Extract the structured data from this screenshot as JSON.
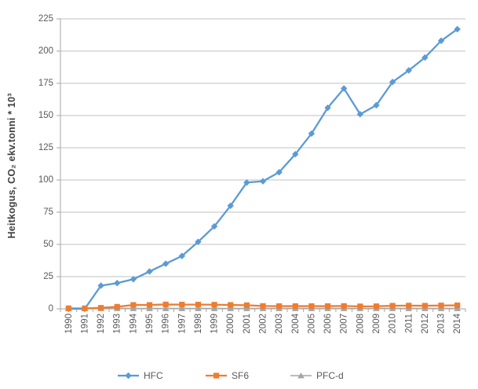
{
  "chart_data": {
    "type": "line",
    "title": "",
    "ylabel": "Heitkogus,  CO₂ ekv.tonni * 10³",
    "xlabel": "",
    "ylim": [
      0,
      225
    ],
    "ytick_step": 25,
    "grid": "horizontal",
    "legend_position": "bottom",
    "categories": [
      "1990",
      "1991",
      "1992",
      "1993",
      "1994",
      "1995",
      "1996",
      "1997",
      "1998",
      "1999",
      "2000",
      "2001",
      "2002",
      "2003",
      "2004",
      "2005",
      "2006",
      "2007",
      "2008",
      "2009",
      "2010",
      "2011",
      "2012",
      "2013",
      "2014"
    ],
    "series": [
      {
        "name": "HFC",
        "color": "#5B9BD5",
        "marker": "diamond",
        "values": [
          0,
          0,
          18,
          20,
          23,
          29,
          35,
          41,
          52,
          64,
          80,
          98,
          99,
          106,
          120,
          136,
          156,
          171,
          151,
          158,
          176,
          185,
          195,
          208,
          217
        ]
      },
      {
        "name": "SF6",
        "color": "#ED7D31",
        "marker": "square",
        "values": [
          0.4,
          0.4,
          0.8,
          1.6,
          3.0,
          3.0,
          3.4,
          3.3,
          3.3,
          3.2,
          3.0,
          2.8,
          2.2,
          2.1,
          2.1,
          2.1,
          2.1,
          2.2,
          1.9,
          2.0,
          2.4,
          2.5,
          2.4,
          2.6,
          2.7
        ]
      },
      {
        "name": "PFC-d",
        "color": "#A5A5A5",
        "marker": "triangle",
        "values": [
          0.3,
          0.3,
          0.3,
          0.3,
          0.3,
          0.3,
          0.3,
          0.3,
          0.3,
          0.3,
          0.3,
          0.3,
          0.3,
          0.3,
          0.3,
          0.3,
          0.3,
          0.3,
          0.3,
          0.3,
          0.3,
          0.3,
          0.3,
          0.3,
          0.3
        ]
      }
    ],
    "colors": {
      "grid_line": "#C0C0C0",
      "axis_line": "#A6A6A6",
      "tick_label": "#595959",
      "legend_label": "#595959"
    }
  }
}
